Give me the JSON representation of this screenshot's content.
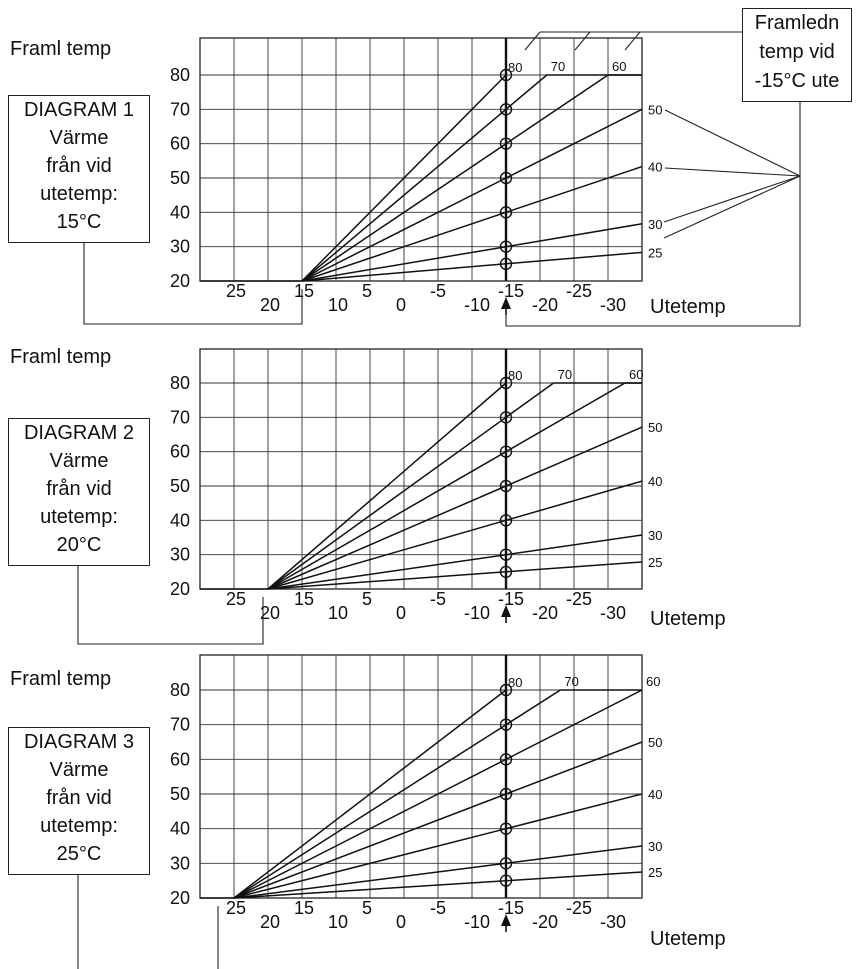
{
  "framledn_box": {
    "line1": "Framledn",
    "line2": "temp vid",
    "line3": "-15°C ute"
  },
  "chart_data": [
    {
      "type": "line",
      "ylabel": "Framl temp",
      "xlabel": "Utetemp",
      "box": {
        "line1": "DIAGRAM 1",
        "line2": "Värme",
        "line3": "från vid",
        "line4": "utetemp:",
        "line5": "15°C"
      },
      "y_ticks": [
        "20",
        "30",
        "40",
        "50",
        "60",
        "70",
        "80"
      ],
      "x_ticks": [
        "25",
        "20",
        "15",
        "10",
        "5",
        "0",
        "-5",
        "-10",
        "-15",
        "-20",
        "-25",
        "-30"
      ],
      "ylim": [
        20,
        80
      ],
      "xlim": [
        30,
        -35
      ],
      "heat_start": 15,
      "series": [
        {
          "name": "80",
          "end": [
            -15,
            80
          ],
          "end_x": -15
        },
        {
          "name": "70",
          "end": [
            -15,
            70
          ],
          "end_x": -35
        },
        {
          "name": "60",
          "end": [
            -15,
            60
          ],
          "end_x": -35
        },
        {
          "name": "50",
          "end": [
            -15,
            50
          ],
          "end_x": -35
        },
        {
          "name": "40",
          "end": [
            -15,
            40
          ],
          "end_x": -35
        },
        {
          "name": "30",
          "end": [
            -15,
            30
          ],
          "end_x": -35
        },
        {
          "name": "25",
          "end": [
            -15,
            25
          ],
          "end_x": -35
        }
      ]
    },
    {
      "type": "line",
      "ylabel": "Framl temp",
      "xlabel": "Utetemp",
      "box": {
        "line1": "DIAGRAM 2",
        "line2": "Värme",
        "line3": "från vid",
        "line4": "utetemp:",
        "line5": "20°C"
      },
      "y_ticks": [
        "20",
        "30",
        "40",
        "50",
        "60",
        "70",
        "80"
      ],
      "x_ticks": [
        "25",
        "20",
        "15",
        "10",
        "5",
        "0",
        "-5",
        "-10",
        "-15",
        "-20",
        "-25",
        "-30"
      ],
      "ylim": [
        20,
        80
      ],
      "xlim": [
        30,
        -35
      ],
      "heat_start": 20,
      "series": [
        {
          "name": "80",
          "end": [
            -15,
            80
          ],
          "end_x": -15
        },
        {
          "name": "70",
          "end": [
            -15,
            70
          ],
          "end_x": -35
        },
        {
          "name": "60",
          "end": [
            -15,
            60
          ],
          "end_x": -35
        },
        {
          "name": "50",
          "end": [
            -15,
            50
          ],
          "end_x": -35
        },
        {
          "name": "40",
          "end": [
            -15,
            40
          ],
          "end_x": -35
        },
        {
          "name": "30",
          "end": [
            -15,
            30
          ],
          "end_x": -35
        },
        {
          "name": "25",
          "end": [
            -15,
            25
          ],
          "end_x": -35
        }
      ]
    },
    {
      "type": "line",
      "ylabel": "Framl temp",
      "xlabel": "Utetemp",
      "box": {
        "line1": "DIAGRAM 3",
        "line2": "Värme",
        "line3": "från vid",
        "line4": "utetemp:",
        "line5": "25°C"
      },
      "y_ticks": [
        "20",
        "30",
        "40",
        "50",
        "60",
        "70",
        "80"
      ],
      "x_ticks": [
        "25",
        "20",
        "15",
        "10",
        "5",
        "0",
        "-5",
        "-10",
        "-15",
        "-20",
        "-25",
        "-30"
      ],
      "ylim": [
        20,
        80
      ],
      "xlim": [
        30,
        -35
      ],
      "heat_start": 25,
      "series": [
        {
          "name": "80",
          "end": [
            -15,
            80
          ],
          "end_x": -15
        },
        {
          "name": "70",
          "end": [
            -15,
            70
          ],
          "end_x": -35
        },
        {
          "name": "60",
          "end": [
            -15,
            60
          ],
          "end_x": -35
        },
        {
          "name": "50",
          "end": [
            -15,
            50
          ],
          "end_x": -35
        },
        {
          "name": "40",
          "end": [
            -15,
            40
          ],
          "end_x": -35
        },
        {
          "name": "30",
          "end": [
            -15,
            30
          ],
          "end_x": -35
        },
        {
          "name": "25",
          "end": [
            -15,
            25
          ],
          "end_x": -35
        }
      ]
    }
  ]
}
